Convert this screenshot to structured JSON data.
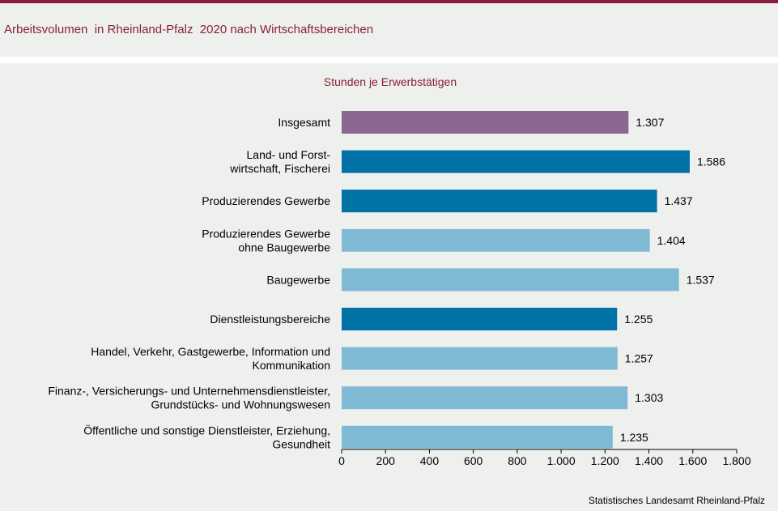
{
  "header": {
    "title": "Arbeitsvolumen  in Rheinland-Pfalz  2020 nach Wirtschaftsbereichen"
  },
  "source": "Statistisches Landesamt  Rheinland-Pfalz",
  "colors": {
    "brand": "#8a1e3a",
    "total": "#8b6792",
    "main_sector": "#0072a6",
    "sub_sector": "#80b9d3",
    "background": "#eef0ee"
  },
  "chart_data": {
    "type": "bar",
    "orientation": "horizontal",
    "title": "",
    "subtitle": "Stunden je Erwerbstätigen",
    "xlabel": "",
    "ylabel": "",
    "xlim": [
      0,
      1800
    ],
    "x_ticks": [
      "0",
      "200",
      "400",
      "600",
      "800",
      "1.000",
      "1.200",
      "1.400",
      "1.600",
      "1.800"
    ],
    "grid": false,
    "legend": "none",
    "categories": [
      "Insgesamt",
      "Land- und Forst-\nwirtschaft, Fischerei",
      "Produzierendes Gewerbe",
      "Produzierendes Gewerbe\nohne Baugewerbe",
      "Baugewerbe",
      "Dienstleistungsbereiche",
      "Handel, Verkehr, Gastgewerbe, Information und\nKommunikation",
      "Finanz-, Versicherungs- und Unternehmensdienstleister,\nGrundstücks- und Wohnungswesen",
      "Öffentliche und sonstige Dienstleister, Erziehung,\nGesundheit"
    ],
    "values": [
      1307,
      1586,
      1437,
      1404,
      1537,
      1255,
      1257,
      1303,
      1235
    ],
    "value_labels": [
      "1.307",
      "1.586",
      "1.437",
      "1.404",
      "1.537",
      "1.255",
      "1.257",
      "1.303",
      "1.235"
    ],
    "bar_color_keys": [
      "total",
      "main_sector",
      "main_sector",
      "sub_sector",
      "sub_sector",
      "main_sector",
      "sub_sector",
      "sub_sector",
      "sub_sector"
    ]
  }
}
